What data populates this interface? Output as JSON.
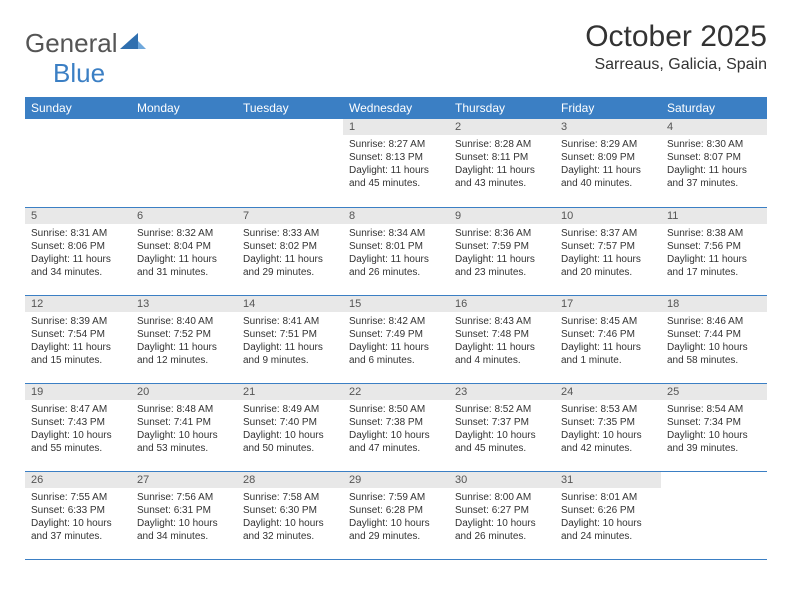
{
  "brand": {
    "part1": "General",
    "part2": "Blue"
  },
  "title": "October 2025",
  "location": "Sarreaus, Galicia, Spain",
  "colors": {
    "header_bg": "#3b7fc4",
    "header_text": "#ffffff",
    "daynum_bg": "#e8e8e8",
    "border": "#3b7fc4",
    "text": "#333333"
  },
  "day_labels": [
    "Sunday",
    "Monday",
    "Tuesday",
    "Wednesday",
    "Thursday",
    "Friday",
    "Saturday"
  ],
  "weeks": [
    [
      null,
      null,
      null,
      {
        "n": "1",
        "sr": "8:27 AM",
        "ss": "8:13 PM",
        "dl": "11 hours and 45 minutes."
      },
      {
        "n": "2",
        "sr": "8:28 AM",
        "ss": "8:11 PM",
        "dl": "11 hours and 43 minutes."
      },
      {
        "n": "3",
        "sr": "8:29 AM",
        "ss": "8:09 PM",
        "dl": "11 hours and 40 minutes."
      },
      {
        "n": "4",
        "sr": "8:30 AM",
        "ss": "8:07 PM",
        "dl": "11 hours and 37 minutes."
      }
    ],
    [
      {
        "n": "5",
        "sr": "8:31 AM",
        "ss": "8:06 PM",
        "dl": "11 hours and 34 minutes."
      },
      {
        "n": "6",
        "sr": "8:32 AM",
        "ss": "8:04 PM",
        "dl": "11 hours and 31 minutes."
      },
      {
        "n": "7",
        "sr": "8:33 AM",
        "ss": "8:02 PM",
        "dl": "11 hours and 29 minutes."
      },
      {
        "n": "8",
        "sr": "8:34 AM",
        "ss": "8:01 PM",
        "dl": "11 hours and 26 minutes."
      },
      {
        "n": "9",
        "sr": "8:36 AM",
        "ss": "7:59 PM",
        "dl": "11 hours and 23 minutes."
      },
      {
        "n": "10",
        "sr": "8:37 AM",
        "ss": "7:57 PM",
        "dl": "11 hours and 20 minutes."
      },
      {
        "n": "11",
        "sr": "8:38 AM",
        "ss": "7:56 PM",
        "dl": "11 hours and 17 minutes."
      }
    ],
    [
      {
        "n": "12",
        "sr": "8:39 AM",
        "ss": "7:54 PM",
        "dl": "11 hours and 15 minutes."
      },
      {
        "n": "13",
        "sr": "8:40 AM",
        "ss": "7:52 PM",
        "dl": "11 hours and 12 minutes."
      },
      {
        "n": "14",
        "sr": "8:41 AM",
        "ss": "7:51 PM",
        "dl": "11 hours and 9 minutes."
      },
      {
        "n": "15",
        "sr": "8:42 AM",
        "ss": "7:49 PM",
        "dl": "11 hours and 6 minutes."
      },
      {
        "n": "16",
        "sr": "8:43 AM",
        "ss": "7:48 PM",
        "dl": "11 hours and 4 minutes."
      },
      {
        "n": "17",
        "sr": "8:45 AM",
        "ss": "7:46 PM",
        "dl": "11 hours and 1 minute."
      },
      {
        "n": "18",
        "sr": "8:46 AM",
        "ss": "7:44 PM",
        "dl": "10 hours and 58 minutes."
      }
    ],
    [
      {
        "n": "19",
        "sr": "8:47 AM",
        "ss": "7:43 PM",
        "dl": "10 hours and 55 minutes."
      },
      {
        "n": "20",
        "sr": "8:48 AM",
        "ss": "7:41 PM",
        "dl": "10 hours and 53 minutes."
      },
      {
        "n": "21",
        "sr": "8:49 AM",
        "ss": "7:40 PM",
        "dl": "10 hours and 50 minutes."
      },
      {
        "n": "22",
        "sr": "8:50 AM",
        "ss": "7:38 PM",
        "dl": "10 hours and 47 minutes."
      },
      {
        "n": "23",
        "sr": "8:52 AM",
        "ss": "7:37 PM",
        "dl": "10 hours and 45 minutes."
      },
      {
        "n": "24",
        "sr": "8:53 AM",
        "ss": "7:35 PM",
        "dl": "10 hours and 42 minutes."
      },
      {
        "n": "25",
        "sr": "8:54 AM",
        "ss": "7:34 PM",
        "dl": "10 hours and 39 minutes."
      }
    ],
    [
      {
        "n": "26",
        "sr": "7:55 AM",
        "ss": "6:33 PM",
        "dl": "10 hours and 37 minutes."
      },
      {
        "n": "27",
        "sr": "7:56 AM",
        "ss": "6:31 PM",
        "dl": "10 hours and 34 minutes."
      },
      {
        "n": "28",
        "sr": "7:58 AM",
        "ss": "6:30 PM",
        "dl": "10 hours and 32 minutes."
      },
      {
        "n": "29",
        "sr": "7:59 AM",
        "ss": "6:28 PM",
        "dl": "10 hours and 29 minutes."
      },
      {
        "n": "30",
        "sr": "8:00 AM",
        "ss": "6:27 PM",
        "dl": "10 hours and 26 minutes."
      },
      {
        "n": "31",
        "sr": "8:01 AM",
        "ss": "6:26 PM",
        "dl": "10 hours and 24 minutes."
      },
      null
    ]
  ],
  "labels": {
    "sunrise": "Sunrise:",
    "sunset": "Sunset:",
    "daylight": "Daylight:"
  }
}
